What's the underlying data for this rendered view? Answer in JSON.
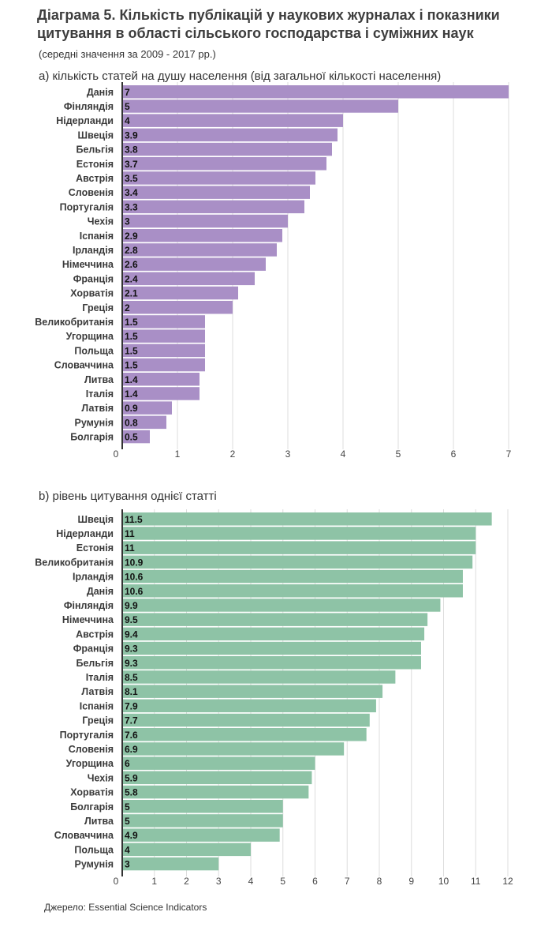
{
  "title": "Діаграма   5. Кількість публікацій у наукових журналах  і показники\nцитування в області сільського господарства і суміжних наук",
  "subtitle": "(середні значення за 2009 - 2017 рр.)",
  "source": "Джерело:   Essential Science Indicators",
  "colors": {
    "panel_a": "#a98fc6",
    "panel_b": "#8ec3a6",
    "axis": "#333333",
    "grid": "#dddddd"
  },
  "chart_data": [
    {
      "type": "bar",
      "orientation": "horizontal",
      "title": "а) кількість статей на душу населення (від загальної кількості населення)",
      "categories": [
        "Данія",
        "Фінляндія",
        "Нідерланди",
        "Швеція",
        "Бельгія",
        "Естонія",
        "Австрія",
        "Словенія",
        "Португалія",
        "Чехія",
        "Іспанія",
        "Ірландія",
        "Німеччина",
        "Франція",
        "Хорватія",
        "Греція",
        "Великобританія",
        "Угорщина",
        "Польща",
        "Словаччина",
        "Литва",
        "Італія",
        "Латвія",
        "Румунія",
        "Болгарія"
      ],
      "values": [
        7,
        5,
        4,
        3.9,
        3.8,
        3.7,
        3.5,
        3.4,
        3.3,
        3,
        2.9,
        2.8,
        2.6,
        2.4,
        2.1,
        2,
        1.5,
        1.5,
        1.5,
        1.5,
        1.4,
        1.4,
        0.9,
        0.8,
        0.5
      ],
      "xlim": [
        0,
        7
      ],
      "xticks": [
        "0",
        "1",
        "2",
        "3",
        "4",
        "5",
        "6",
        "7"
      ],
      "grid": true
    },
    {
      "type": "bar",
      "orientation": "horizontal",
      "title": "b) рівень цитування однієї статті",
      "categories": [
        "Швеція",
        "Нідерланди",
        "Естонія",
        "Великобританія",
        "Ірландія",
        "Данія",
        "Фінляндія",
        "Німеччина",
        "Австрія",
        "Франція",
        "Бельгія",
        "Італія",
        "Латвія",
        "Іспанія",
        "Греція",
        "Португалія",
        "Словенія",
        "Угорщина",
        "Чехія",
        "Хорватія",
        "Болгарія",
        "Литва",
        "Словаччина",
        "Польща",
        "Румунія"
      ],
      "values": [
        11.5,
        11,
        11,
        10.9,
        10.6,
        10.6,
        9.9,
        9.5,
        9.4,
        9.3,
        9.3,
        8.5,
        8.1,
        7.9,
        7.7,
        7.6,
        6.9,
        6,
        5.9,
        5.8,
        5,
        5,
        4.9,
        4,
        3
      ],
      "xlim": [
        0,
        12
      ],
      "xticks": [
        "0",
        "1",
        "2",
        "3",
        "4",
        "5",
        "6",
        "7",
        "8",
        "9",
        "10",
        "11",
        "12"
      ],
      "grid": true
    }
  ]
}
